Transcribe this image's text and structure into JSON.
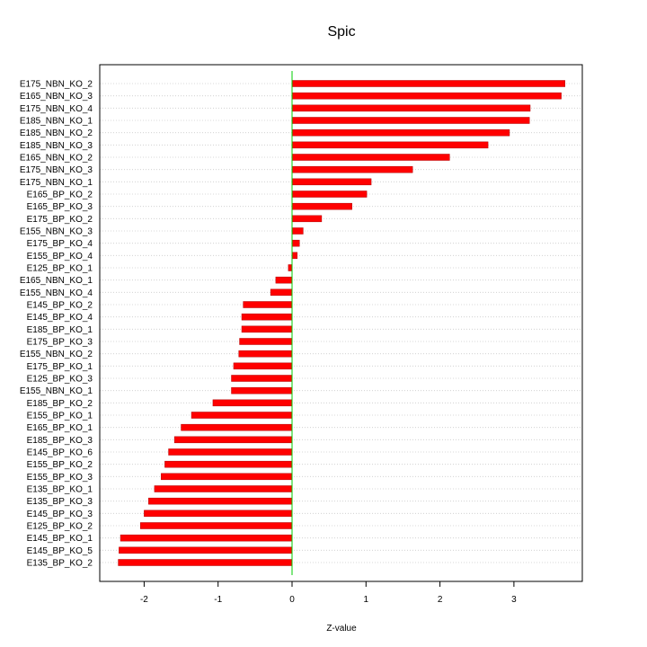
{
  "chart_data": {
    "type": "bar",
    "orientation": "horizontal",
    "title": "Spic",
    "xlabel": "Z-value",
    "ylabel": "",
    "xlim": [
      -2.35,
      3.95
    ],
    "xticks": [
      -2,
      -1,
      0,
      1,
      2,
      3
    ],
    "grid": "horizontal dotted",
    "legend": "none",
    "zero_line": true,
    "colors": {
      "bar": "#ff0000",
      "bar_edge": "#b00000",
      "zero_line": "#00cc00",
      "grid": "#cccccc"
    },
    "categories": [
      "E175_NBN_KO_2",
      "E165_NBN_KO_3",
      "E175_NBN_KO_4",
      "E185_NBN_KO_1",
      "E185_NBN_KO_2",
      "E185_NBN_KO_3",
      "E165_NBN_KO_2",
      "E175_NBN_KO_3",
      "E175_NBN_KO_1",
      "E165_BP_KO_2",
      "E165_BP_KO_3",
      "E175_BP_KO_2",
      "E155_NBN_KO_3",
      "E175_BP_KO_4",
      "E155_BP_KO_4",
      "E125_BP_KO_1",
      "E165_NBN_KO_1",
      "E155_NBN_KO_4",
      "E145_BP_KO_2",
      "E145_BP_KO_4",
      "E185_BP_KO_1",
      "E175_BP_KO_3",
      "E155_NBN_KO_2",
      "E175_BP_KO_1",
      "E125_BP_KO_3",
      "E155_NBN_KO_1",
      "E185_BP_KO_2",
      "E155_BP_KO_1",
      "E165_BP_KO_1",
      "E185_BP_KO_3",
      "E145_BP_KO_6",
      "E155_BP_KO_2",
      "E155_BP_KO_3",
      "E135_BP_KO_1",
      "E135_BP_KO_3",
      "E145_BP_KO_3",
      "E125_BP_KO_2",
      "E145_BP_KO_1",
      "E145_BP_KO_5",
      "E135_BP_KO_2"
    ],
    "values": [
      3.69,
      3.64,
      3.22,
      3.21,
      2.94,
      2.65,
      2.13,
      1.63,
      1.07,
      1.01,
      0.81,
      0.4,
      0.15,
      0.1,
      0.07,
      -0.05,
      -0.22,
      -0.29,
      -0.66,
      -0.68,
      -0.68,
      -0.71,
      -0.72,
      -0.79,
      -0.82,
      -0.82,
      -1.07,
      -1.36,
      -1.5,
      -1.59,
      -1.67,
      -1.72,
      -1.77,
      -1.86,
      -1.94,
      -2.0,
      -2.05,
      -2.32,
      -2.34,
      -2.35
    ]
  }
}
